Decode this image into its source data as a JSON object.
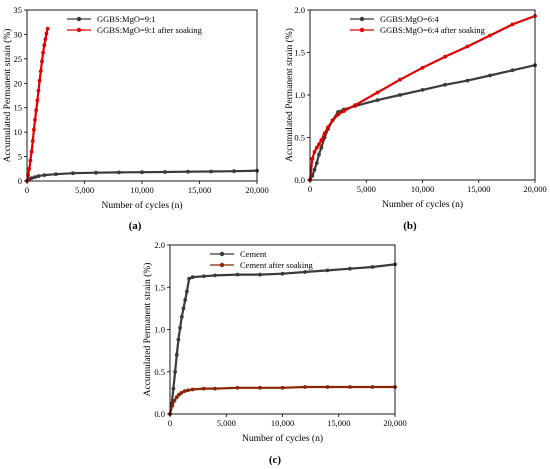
{
  "chart_data": [
    {
      "panel": "(a)",
      "type": "scatter",
      "xlabel": "Number of cycles (n)",
      "ylabel": "Accumulated Permanent strain (%)",
      "xlim": [
        0,
        20000
      ],
      "ylim": [
        0,
        35
      ],
      "xticks": [
        0,
        5000,
        10000,
        15000,
        20000
      ],
      "xtick_labels": [
        "0",
        "5,000",
        "10,000",
        "15,000",
        "20,000"
      ],
      "yticks": [
        0,
        5,
        10,
        15,
        20,
        25,
        30,
        35
      ],
      "ytick_labels": [
        "0",
        "5",
        "10",
        "15",
        "20",
        "25",
        "30",
        "35"
      ],
      "legend": "top-left",
      "series": [
        {
          "name": "GGBS:MgO=9:1",
          "color": "#3a3a3a",
          "x": [
            0,
            200,
            400,
            700,
            1000,
            1500,
            2500,
            4000,
            6000,
            8000,
            10000,
            12000,
            14000,
            16000,
            18000,
            20000
          ],
          "y": [
            0,
            0.4,
            0.6,
            0.8,
            1.0,
            1.2,
            1.4,
            1.6,
            1.7,
            1.75,
            1.8,
            1.85,
            1.9,
            1.95,
            2.0,
            2.1
          ]
        },
        {
          "name": "GGBS:MgO=9:1 after soaking",
          "color": "#e00000",
          "x": [
            0,
            100,
            200,
            300,
            400,
            500,
            600,
            700,
            800,
            900,
            1000,
            1100,
            1200,
            1300,
            1400,
            1500,
            1600,
            1700,
            1800
          ],
          "y": [
            0,
            1.2,
            2.5,
            4.2,
            6.0,
            8.2,
            10.5,
            12.5,
            14.5,
            16.5,
            18.5,
            20.5,
            22.5,
            24.5,
            26.3,
            27.8,
            29.0,
            30.2,
            31.2
          ]
        }
      ]
    },
    {
      "panel": "(b)",
      "type": "scatter",
      "xlabel": "Number of cycles (n)",
      "ylabel": "Accumulated Permanent strain (%)",
      "xlim": [
        0,
        20000
      ],
      "ylim": [
        0,
        2.0
      ],
      "xticks": [
        0,
        5000,
        10000,
        15000,
        20000
      ],
      "xtick_labels": [
        "0",
        "5,000",
        "10,000",
        "15,000",
        "20,000"
      ],
      "yticks": [
        0,
        0.5,
        1.0,
        1.5,
        2.0
      ],
      "ytick_labels": [
        "0.0",
        "0.5",
        "1.0",
        "1.5",
        "2.0"
      ],
      "legend": "top-left",
      "series": [
        {
          "name": "GGBS:MgO=6:4",
          "color": "#3a3a3a",
          "x": [
            0,
            200,
            400,
            600,
            800,
            1000,
            1300,
            1600,
            2000,
            2500,
            3000,
            4000,
            6000,
            8000,
            10000,
            12000,
            14000,
            16000,
            18000,
            20000
          ],
          "y": [
            0,
            0.05,
            0.12,
            0.2,
            0.3,
            0.38,
            0.5,
            0.6,
            0.7,
            0.8,
            0.83,
            0.87,
            0.94,
            1.0,
            1.06,
            1.12,
            1.17,
            1.23,
            1.29,
            1.35
          ]
        },
        {
          "name": "GGBS:MgO=6:4 after soaking",
          "color": "#e00000",
          "x": [
            0,
            200,
            400,
            600,
            800,
            1000,
            1300,
            1600,
            2000,
            2500,
            3000,
            4000,
            6000,
            8000,
            10000,
            12000,
            14000,
            16000,
            18000,
            20000
          ],
          "y": [
            0,
            0.25,
            0.33,
            0.38,
            0.42,
            0.47,
            0.55,
            0.62,
            0.7,
            0.77,
            0.81,
            0.88,
            1.03,
            1.18,
            1.32,
            1.45,
            1.57,
            1.7,
            1.83,
            1.93
          ]
        }
      ]
    },
    {
      "panel": "(c)",
      "type": "scatter",
      "xlabel": "Number of cycles (n)",
      "ylabel": "Accumulated Permanent strain (%)",
      "xlim": [
        0,
        20000
      ],
      "ylim": [
        0,
        2.0
      ],
      "xticks": [
        0,
        5000,
        10000,
        15000,
        20000
      ],
      "xtick_labels": [
        "0",
        "5,000",
        "10,000",
        "15,000",
        "20,000"
      ],
      "yticks": [
        0,
        0.5,
        1.0,
        1.5,
        2.0
      ],
      "ytick_labels": [
        "0.0",
        "0.5",
        "1.0",
        "1.5",
        "2.0"
      ],
      "legend": "top-left",
      "series": [
        {
          "name": "Cement",
          "color": "#3a3a3a",
          "x": [
            0,
            150,
            300,
            450,
            600,
            750,
            900,
            1050,
            1200,
            1350,
            1500,
            1700,
            2000,
            3000,
            4000,
            6000,
            8000,
            10000,
            12000,
            14000,
            16000,
            18000,
            20000
          ],
          "y": [
            0,
            0.12,
            0.3,
            0.5,
            0.7,
            0.88,
            1.02,
            1.15,
            1.25,
            1.35,
            1.45,
            1.6,
            1.62,
            1.63,
            1.64,
            1.65,
            1.65,
            1.66,
            1.68,
            1.7,
            1.72,
            1.74,
            1.77
          ]
        },
        {
          "name": "Cement after soaking",
          "color": "#8b2500",
          "x": [
            0,
            200,
            400,
            600,
            800,
            1000,
            1300,
            1600,
            2000,
            3000,
            4000,
            6000,
            8000,
            10000,
            12000,
            14000,
            16000,
            18000,
            20000
          ],
          "y": [
            0,
            0.1,
            0.16,
            0.2,
            0.23,
            0.25,
            0.27,
            0.28,
            0.29,
            0.3,
            0.3,
            0.31,
            0.31,
            0.31,
            0.32,
            0.32,
            0.32,
            0.32,
            0.32
          ]
        }
      ]
    }
  ]
}
